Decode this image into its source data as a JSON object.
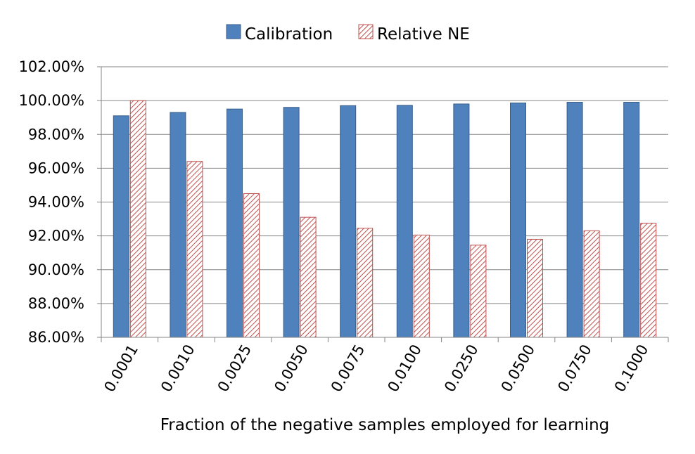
{
  "chart_data": {
    "type": "bar",
    "categories": [
      "0.0001",
      "0.0010",
      "0.0025",
      "0.0050",
      "0.0075",
      "0.0100",
      "0.0250",
      "0.0500",
      "0.0750",
      "0.1000"
    ],
    "series": [
      {
        "name": "Calibration",
        "values": [
          99.1,
          99.3,
          99.5,
          99.6,
          99.7,
          99.72,
          99.8,
          99.86,
          99.9,
          99.9
        ],
        "color": "#4f81bd",
        "stroke": "#385d8a",
        "pattern": "solid"
      },
      {
        "name": "Relative NE",
        "values": [
          100.0,
          96.4,
          94.5,
          93.1,
          92.45,
          92.05,
          91.45,
          91.8,
          92.3,
          92.75
        ],
        "color": "#c0504d",
        "stroke": "#c0504d",
        "pattern": "diagonal-hatch"
      }
    ],
    "ylim": [
      86,
      102
    ],
    "yticks": [
      86,
      88,
      90,
      92,
      94,
      96,
      98,
      100,
      102
    ],
    "ytick_labels": [
      "86.00%",
      "88.00%",
      "90.00%",
      "92.00%",
      "94.00%",
      "96.00%",
      "98.00%",
      "100.00%",
      "102.00%"
    ],
    "xlabel": "Fraction of the negative samples employed for learning",
    "ylabel": "",
    "title": "",
    "grid": "horizontal",
    "legend_position": "top-center",
    "xtick_rotation": "-60deg"
  }
}
